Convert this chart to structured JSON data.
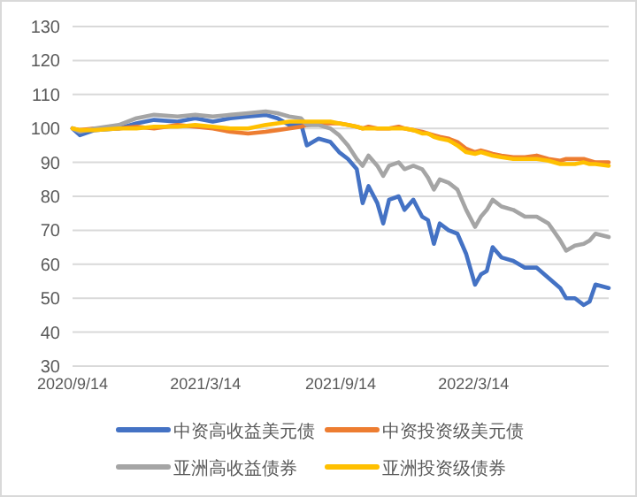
{
  "chart_data": {
    "type": "line",
    "x": [
      "2020-09-14",
      "2020-09-24",
      "2020-10-14",
      "2020-11-16",
      "2020-12-10",
      "2021-01-03",
      "2021-02-04",
      "2021-02-28",
      "2021-03-24",
      "2021-04-17",
      "2021-05-11",
      "2021-06-04",
      "2021-06-20",
      "2021-07-06",
      "2021-07-22",
      "2021-07-30",
      "2021-08-15",
      "2021-08-31",
      "2021-09-12",
      "2021-09-24",
      "2021-10-06",
      "2021-10-14",
      "2021-10-22",
      "2021-11-03",
      "2021-11-11",
      "2021-11-19",
      "2021-12-02",
      "2021-12-10",
      "2021-12-22",
      "2022-01-03",
      "2022-01-11",
      "2022-01-19",
      "2022-01-27",
      "2022-02-08",
      "2022-02-20",
      "2022-03-04",
      "2022-03-16",
      "2022-03-24",
      "2022-04-01",
      "2022-04-09",
      "2022-04-21",
      "2022-05-07",
      "2022-05-23",
      "2022-06-08",
      "2022-06-24",
      "2022-07-10",
      "2022-07-18",
      "2022-07-30",
      "2022-08-11",
      "2022-08-19",
      "2022-08-27",
      "2022-09-14"
    ],
    "series": [
      {
        "name": "中资高收益美元债",
        "color": "#4472c4",
        "values": [
          100,
          98,
          99.5,
          100,
          101.5,
          102.5,
          102,
          103,
          102,
          103,
          103.5,
          104,
          103,
          101,
          101.5,
          95,
          97,
          96,
          93,
          91,
          88,
          78,
          83,
          78,
          72,
          79,
          80,
          76,
          79,
          74,
          73,
          66,
          72,
          70,
          69,
          63,
          54,
          57,
          58,
          65,
          62,
          61,
          59,
          59,
          56,
          53,
          50,
          50,
          48,
          49,
          54,
          53
        ]
      },
      {
        "name": "中资投资级美元债",
        "color": "#ed7d31",
        "values": [
          100,
          99.5,
          100,
          100,
          100.5,
          100,
          101,
          100.5,
          100,
          99,
          98.5,
          99,
          99.5,
          100,
          100.5,
          101,
          101.5,
          101.5,
          101.5,
          101,
          100.5,
          100,
          100.5,
          100,
          100,
          100,
          100.5,
          100,
          99.5,
          99,
          98.5,
          98,
          97.5,
          97,
          96,
          94,
          93,
          93.5,
          93,
          92.5,
          92,
          91.5,
          91.5,
          92,
          91,
          90.5,
          91,
          91,
          91,
          90.5,
          90,
          90
        ]
      },
      {
        "name": "亚洲高收益债券",
        "color": "#a5a5a5",
        "values": [
          100,
          99,
          100,
          101,
          103,
          104,
          103.5,
          104,
          103.5,
          104,
          104.5,
          105,
          104.5,
          103.5,
          103,
          101,
          101,
          100,
          98,
          95,
          91,
          89,
          92,
          89,
          86,
          89,
          90,
          88,
          89,
          88,
          85.5,
          82,
          85,
          84,
          82,
          76,
          71,
          74,
          76,
          79,
          77,
          76,
          74,
          74,
          72,
          67,
          64,
          65.5,
          66,
          67,
          69,
          68
        ]
      },
      {
        "name": "亚洲投资级债券",
        "color": "#ffc000",
        "values": [
          100,
          99.5,
          99.5,
          100,
          100,
          100.5,
          100.5,
          101,
          100.5,
          100,
          100,
          101,
          101.5,
          102,
          102,
          102,
          102,
          102,
          101.5,
          101,
          100.5,
          100,
          100,
          100,
          100,
          100,
          100,
          100,
          99.5,
          98.5,
          98.5,
          97.5,
          97,
          96.5,
          95,
          93,
          92.5,
          93,
          92.5,
          92,
          91.5,
          91,
          91,
          91,
          90.5,
          89.5,
          89.5,
          89.5,
          90,
          89.5,
          89.5,
          89
        ]
      }
    ],
    "xlim": [
      "2020-09-14",
      "2022-09-14"
    ],
    "xticks": [
      {
        "value": "2020-09-14",
        "label": "2020/9/14"
      },
      {
        "value": "2021-03-14",
        "label": "2021/3/14"
      },
      {
        "value": "2021-09-14",
        "label": "2021/9/14"
      },
      {
        "value": "2022-03-14",
        "label": "2022/3/14"
      }
    ],
    "ylim": [
      30,
      130
    ],
    "yticks": [
      30,
      40,
      50,
      60,
      70,
      80,
      90,
      100,
      110,
      120,
      130
    ],
    "grid": "y",
    "legend": "bottom"
  }
}
